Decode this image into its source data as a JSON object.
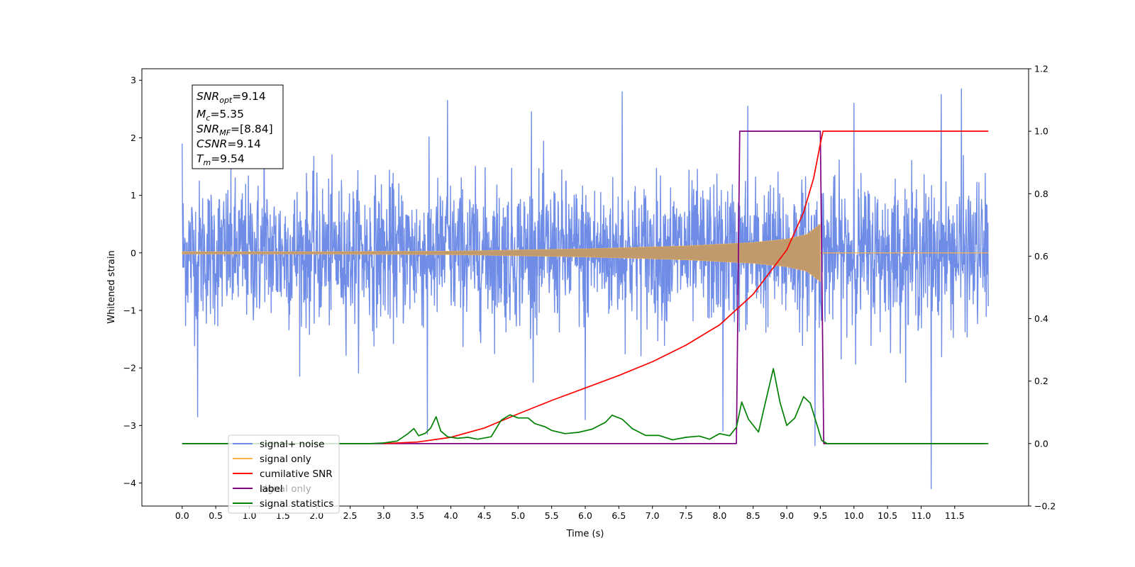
{
  "chart_data": {
    "type": "line",
    "xlabel": "Time (s)",
    "ylabel": "Whitened strain",
    "xlim": [
      -0.6,
      12.6
    ],
    "ylim": [
      -4.4,
      3.2
    ],
    "y2lim": [
      -0.2,
      1.2
    ],
    "x_ticks": [
      "0.0",
      "0.5",
      "1.0",
      "1.5",
      "2.0",
      "2.5",
      "3.0",
      "3.5",
      "4.0",
      "4.5",
      "5.0",
      "5.5",
      "6.0",
      "6.5",
      "7.0",
      "7.5",
      "8.0",
      "8.5",
      "9.0",
      "9.5",
      "10.0",
      "10.5",
      "11.0",
      "11.5"
    ],
    "y_ticks": [
      "3",
      "2",
      "1",
      "0",
      "−1",
      "−2",
      "−3",
      "−4"
    ],
    "y2_ticks": [
      "1.2",
      "1.0",
      "0.8",
      "0.6",
      "0.4",
      "0.2",
      "0.0",
      "−0.2"
    ],
    "grid": false,
    "legend_position": "lower-left",
    "info_box": {
      "snr_opt": {
        "name": "SNR",
        "sub": "opt",
        "value": "=9.14"
      },
      "mc": {
        "name": "M",
        "sub": "c",
        "value": "=5.35"
      },
      "snr_mf": {
        "name": "SNR",
        "sub": "MF",
        "value": "=[8.84]"
      },
      "csnr": {
        "name": "CSNR",
        "value": "=9.14"
      },
      "tm": {
        "name": "T",
        "sub": "m",
        "value": "=9.54"
      }
    },
    "series": [
      {
        "name": "signal+ noise",
        "color": "#6f8de6",
        "axis": "left",
        "x_range": [
          0.0,
          12.0
        ],
        "envelope_typical": [
          -1.6,
          1.6
        ],
        "peaks": [
          {
            "x": 0.0,
            "y": 1.9
          },
          {
            "x": 0.23,
            "y": -2.85
          },
          {
            "x": 1.22,
            "y": 2.3
          },
          {
            "x": 3.65,
            "y": -3.15
          },
          {
            "x": 3.95,
            "y": 2.65
          },
          {
            "x": 5.2,
            "y": 2.45
          },
          {
            "x": 6.0,
            "y": -2.9
          },
          {
            "x": 6.55,
            "y": 2.8
          },
          {
            "x": 8.05,
            "y": -3.1
          },
          {
            "x": 8.42,
            "y": 2.55
          },
          {
            "x": 9.42,
            "y": -3.35
          },
          {
            "x": 10.0,
            "y": 2.6
          },
          {
            "x": 11.15,
            "y": -4.1
          },
          {
            "x": 11.3,
            "y": 2.75
          },
          {
            "x": 11.6,
            "y": 2.85
          }
        ]
      },
      {
        "name": "signal only",
        "color": "#ffb347",
        "axis": "left",
        "amplitude": [
          [
            0.0,
            0.02
          ],
          [
            2.0,
            0.02
          ],
          [
            4.0,
            0.03
          ],
          [
            6.0,
            0.07
          ],
          [
            7.5,
            0.12
          ],
          [
            8.5,
            0.18
          ],
          [
            9.0,
            0.24
          ],
          [
            9.3,
            0.32
          ],
          [
            9.5,
            0.5
          ]
        ],
        "merger_time": 9.54
      },
      {
        "name": "cumilative SNR",
        "color": "#ff0000",
        "axis": "right",
        "points": [
          [
            3.0,
            0.0
          ],
          [
            3.5,
            0.005
          ],
          [
            4.0,
            0.02
          ],
          [
            4.5,
            0.05
          ],
          [
            5.0,
            0.095
          ],
          [
            5.5,
            0.138
          ],
          [
            6.0,
            0.178
          ],
          [
            6.5,
            0.218
          ],
          [
            7.0,
            0.262
          ],
          [
            7.5,
            0.315
          ],
          [
            8.0,
            0.38
          ],
          [
            8.5,
            0.478
          ],
          [
            9.0,
            0.62
          ],
          [
            9.25,
            0.74
          ],
          [
            9.4,
            0.85
          ],
          [
            9.5,
            0.96
          ],
          [
            9.54,
            1.0
          ],
          [
            12.0,
            1.0
          ]
        ]
      },
      {
        "name": "label",
        "color": "#800080",
        "axis": "right",
        "points": [
          [
            0.0,
            0.0
          ],
          [
            8.25,
            0.0
          ],
          [
            8.3,
            1.0
          ],
          [
            9.5,
            1.0
          ],
          [
            9.55,
            0.0
          ],
          [
            11.95,
            0.0
          ]
        ]
      },
      {
        "name": "signal statistics",
        "color": "#008000",
        "axis": "right",
        "points": [
          [
            0.0,
            0.0
          ],
          [
            2.8,
            0.0
          ],
          [
            3.0,
            0.002
          ],
          [
            3.2,
            0.008
          ],
          [
            3.35,
            0.03
          ],
          [
            3.45,
            0.048
          ],
          [
            3.52,
            0.025
          ],
          [
            3.62,
            0.033
          ],
          [
            3.7,
            0.05
          ],
          [
            3.78,
            0.086
          ],
          [
            3.85,
            0.04
          ],
          [
            3.95,
            0.022
          ],
          [
            4.1,
            0.017
          ],
          [
            4.25,
            0.02
          ],
          [
            4.4,
            0.014
          ],
          [
            4.6,
            0.022
          ],
          [
            4.65,
            0.04
          ],
          [
            4.75,
            0.075
          ],
          [
            4.88,
            0.092
          ],
          [
            5.0,
            0.082
          ],
          [
            5.15,
            0.082
          ],
          [
            5.25,
            0.064
          ],
          [
            5.4,
            0.054
          ],
          [
            5.5,
            0.042
          ],
          [
            5.7,
            0.032
          ],
          [
            5.9,
            0.036
          ],
          [
            6.1,
            0.046
          ],
          [
            6.3,
            0.068
          ],
          [
            6.4,
            0.091
          ],
          [
            6.55,
            0.078
          ],
          [
            6.7,
            0.048
          ],
          [
            6.9,
            0.026
          ],
          [
            7.1,
            0.026
          ],
          [
            7.3,
            0.012
          ],
          [
            7.5,
            0.02
          ],
          [
            7.7,
            0.024
          ],
          [
            7.85,
            0.014
          ],
          [
            8.0,
            0.032
          ],
          [
            8.15,
            0.025
          ],
          [
            8.25,
            0.052
          ],
          [
            8.33,
            0.133
          ],
          [
            8.43,
            0.078
          ],
          [
            8.58,
            0.037
          ],
          [
            8.68,
            0.13
          ],
          [
            8.8,
            0.24
          ],
          [
            8.9,
            0.132
          ],
          [
            9.0,
            0.058
          ],
          [
            9.12,
            0.082
          ],
          [
            9.25,
            0.15
          ],
          [
            9.35,
            0.13
          ],
          [
            9.45,
            0.06
          ],
          [
            9.52,
            0.01
          ],
          [
            9.6,
            0.0
          ],
          [
            12.0,
            0.0
          ]
        ]
      },
      {
        "name": "signal only",
        "color": "#ffb347",
        "axis": "right",
        "hidden_behind_legend": true
      }
    ]
  }
}
